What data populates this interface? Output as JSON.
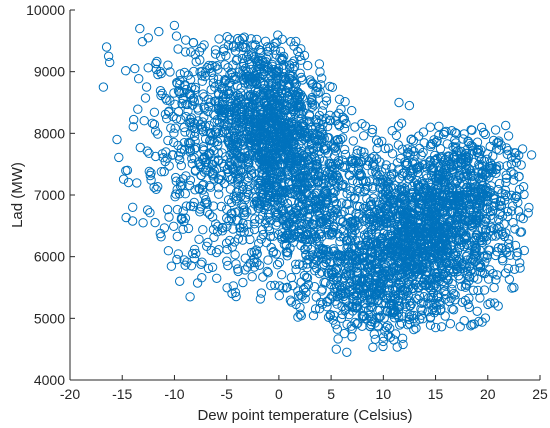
{
  "chart_data": {
    "type": "scatter",
    "title": "",
    "xlabel": "Dew point temperature (Celsius)",
    "ylabel": "Lad (MW)",
    "xlim": [
      -20,
      25
    ],
    "ylim": [
      4000,
      10000
    ],
    "xticks": [
      -20,
      -15,
      -10,
      -5,
      0,
      5,
      10,
      15,
      20,
      25
    ],
    "yticks": [
      4000,
      5000,
      6000,
      7000,
      8000,
      9000,
      10000
    ],
    "xtick_labels": [
      "-20",
      "-15",
      "-10",
      "-5",
      "0",
      "5",
      "10",
      "15",
      "20",
      "25"
    ],
    "ytick_labels": [
      "4000",
      "5000",
      "6000",
      "7000",
      "8000",
      "9000",
      "10000"
    ],
    "grid": false,
    "legend": "none",
    "marker": "open-circle",
    "marker_color": "#0072BD",
    "series": [
      {
        "clusters": [
          {
            "x_mean": -1.5,
            "y_mean": 8300,
            "x_sd": 3.0,
            "y_sd": 650,
            "weight": 0.22
          },
          {
            "x_mean": 2.0,
            "y_mean": 7100,
            "x_sd": 3.8,
            "y_sd": 750,
            "weight": 0.2
          },
          {
            "x_mean": 13.0,
            "y_mean": 6300,
            "x_sd": 4.2,
            "y_sd": 700,
            "weight": 0.3
          },
          {
            "x_mean": 17.5,
            "y_mean": 7100,
            "x_sd": 3.0,
            "y_sd": 550,
            "weight": 0.12
          },
          {
            "x_mean": 8.0,
            "y_mean": 5500,
            "x_sd": 3.0,
            "y_sd": 450,
            "weight": 0.08
          },
          {
            "x_mean": -8.5,
            "y_mean": 7800,
            "x_sd": 2.5,
            "y_sd": 1200,
            "weight": 0.08
          }
        ],
        "outliers": [
          {
            "x": -16.8,
            "y": 8750
          },
          {
            "x": -16.5,
            "y": 9400
          },
          {
            "x": -16.3,
            "y": 9250
          },
          {
            "x": -16.2,
            "y": 9150
          },
          {
            "x": -15.5,
            "y": 7900
          },
          {
            "x": -14.5,
            "y": 7400
          },
          {
            "x": -14.0,
            "y": 6800
          },
          {
            "x": -13.8,
            "y": 9050
          },
          {
            "x": -13.0,
            "y": 6550
          },
          {
            "x": -12.5,
            "y": 9550
          },
          {
            "x": -11.5,
            "y": 9650
          },
          {
            "x": -10.0,
            "y": 9750
          },
          {
            "x": -9.5,
            "y": 5600
          },
          {
            "x": -8.5,
            "y": 5350
          },
          {
            "x": 5.5,
            "y": 4500
          },
          {
            "x": 6.5,
            "y": 4450
          },
          {
            "x": 7.0,
            "y": 4700
          },
          {
            "x": 11.0,
            "y": 4650
          },
          {
            "x": 14.5,
            "y": 8100
          },
          {
            "x": 15.0,
            "y": 4850
          },
          {
            "x": 18.5,
            "y": 4900
          },
          {
            "x": 21.0,
            "y": 5200
          },
          {
            "x": 22.5,
            "y": 5500
          },
          {
            "x": 23.5,
            "y": 6100
          },
          {
            "x": 24.2,
            "y": 7650
          },
          {
            "x": 23.0,
            "y": 7300
          },
          {
            "x": 12.5,
            "y": 8450
          },
          {
            "x": 11.5,
            "y": 8500
          }
        ],
        "n_points": 4200
      }
    ]
  }
}
